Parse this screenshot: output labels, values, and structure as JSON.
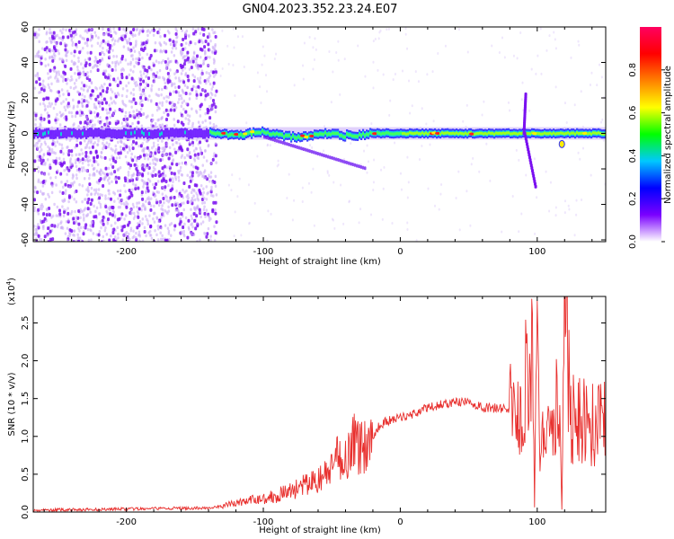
{
  "title": "GN04.2023.352.23.24.E07",
  "chart_data": [
    {
      "type": "heatmap",
      "xlabel": "Height of straight line (km)",
      "ylabel": "Frequency (Hz)",
      "xlim": [
        -268,
        150
      ],
      "ylim": [
        -61,
        60
      ],
      "xticks": [
        -200,
        -100,
        0,
        100
      ],
      "yticks": [
        60,
        40,
        20,
        0,
        -20,
        -40,
        -60
      ],
      "grid": false,
      "colorbar": {
        "label": "Normalized spectral amplitude",
        "range": [
          0,
          1
        ],
        "ticks": [
          "0.0",
          "0.2",
          "0.4",
          "0.6",
          "0.8"
        ],
        "colormap": [
          "#ffffff",
          "#7a00ff",
          "#0000ff",
          "#00c8ff",
          "#00ff00",
          "#ffff00",
          "#ff8000",
          "#ff0000",
          "#ff0060"
        ]
      },
      "features": {
        "carrier_frequency_hz": 0,
        "scattered_noise_region_km": [
          -268,
          -135
        ],
        "strong_band_region_km": [
          -140,
          150
        ],
        "branch_near_90km_hz": [
          22,
          -30
        ],
        "dip_near_118km_hz": -6
      }
    },
    {
      "type": "line",
      "xlabel": "Height of straight line (km)",
      "ylabel": "SNR (10 * v/v)",
      "yscale_note": "(x10",
      "yscale_exp": "4",
      "xlim": [
        -268,
        150
      ],
      "ylim": [
        0,
        2.85
      ],
      "xticks": [
        -200,
        -100,
        0,
        100
      ],
      "yticks": [
        "0.0",
        "0.5",
        "1.0",
        "1.5",
        "2.0",
        "2.5"
      ],
      "grid": false,
      "series_color": "#e8302e",
      "x": [
        -268,
        -250,
        -230,
        -210,
        -190,
        -170,
        -150,
        -135,
        -120,
        -110,
        -100,
        -90,
        -80,
        -70,
        -60,
        -50,
        -45,
        -40,
        -35,
        -30,
        -25,
        -20,
        -15,
        -10,
        -5,
        0,
        10,
        20,
        30,
        40,
        50,
        60,
        70,
        80,
        85,
        88,
        90,
        92,
        94,
        96,
        98,
        100,
        102,
        104,
        106,
        108,
        110,
        112,
        114,
        116,
        118,
        120,
        125,
        130,
        140,
        150
      ],
      "y": [
        0.02,
        0.03,
        0.03,
        0.04,
        0.04,
        0.05,
        0.05,
        0.06,
        0.12,
        0.15,
        0.18,
        0.22,
        0.28,
        0.35,
        0.42,
        0.55,
        0.75,
        0.7,
        0.95,
        0.85,
        0.9,
        1.0,
        1.15,
        1.2,
        1.22,
        1.25,
        1.3,
        1.38,
        1.42,
        1.45,
        1.45,
        1.38,
        1.38,
        1.35,
        1.3,
        1.55,
        0.6,
        2.2,
        1.0,
        2.85,
        0.1,
        2.6,
        0.5,
        1.6,
        0.9,
        1.45,
        1.5,
        1.4,
        1.5,
        1.35,
        0.05,
        2.6,
        1.25,
        1.2,
        1.18,
        1.15
      ]
    }
  ]
}
